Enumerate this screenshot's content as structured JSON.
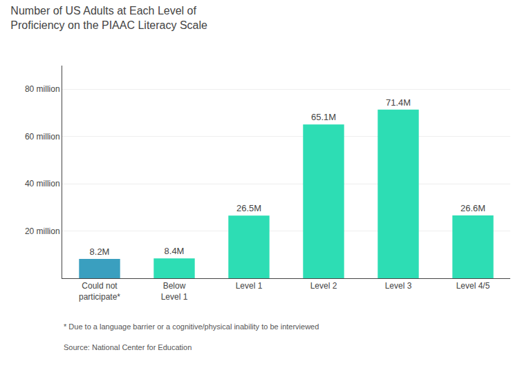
{
  "chart_data": {
    "type": "bar",
    "title": "Number of US Adults at Each Level of\nProficiency on the PIAAC Literacy Scale",
    "categories": [
      "Could not\nparticipate*",
      "Below\nLevel 1",
      "Level 1",
      "Level 2",
      "Level 3",
      "Level 4/5"
    ],
    "values": [
      8.2,
      8.4,
      26.5,
      65.1,
      71.4,
      26.6
    ],
    "value_labels": [
      "8.2M",
      "8.4M",
      "26.5M",
      "65.1M",
      "71.4M",
      "26.6M"
    ],
    "data_labels": true,
    "colors": [
      "#3a9fbf",
      "#2dddb4",
      "#2dddb4",
      "#2dddb4",
      "#2dddb4",
      "#2dddb4"
    ],
    "ylim": [
      0,
      90
    ],
    "yticks": [
      {
        "value": 20,
        "label": "20 million"
      },
      {
        "value": 40,
        "label": "40 million"
      },
      {
        "value": 60,
        "label": "60 million"
      },
      {
        "value": 80,
        "label": "80 million"
      }
    ],
    "grid": true,
    "annotations": [
      "* Due to a language barrier or a cognitive/physical inability to be interviewed",
      "Source: National Center for Education"
    ]
  }
}
